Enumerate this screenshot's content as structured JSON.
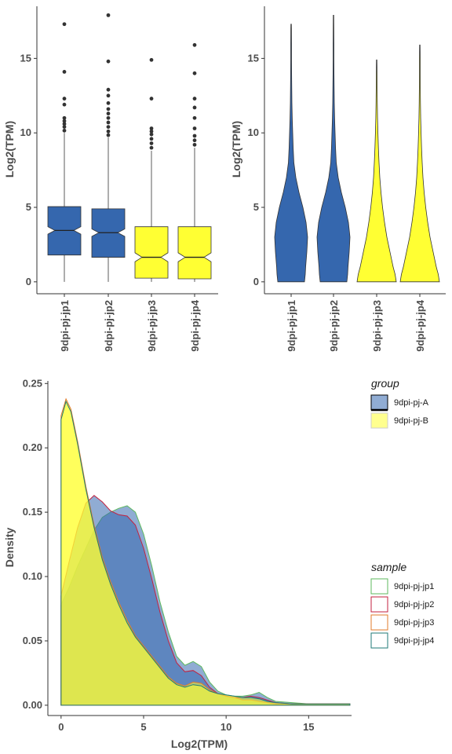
{
  "colors": {
    "groupA": "#3567AE",
    "groupB": "#FFFF33",
    "jp1": "#5EB95E",
    "jp2": "#C3213F",
    "jp3": "#E07B2B",
    "jp4": "#1F7A77"
  },
  "chart_data": [
    {
      "type": "boxplot",
      "xlabel": "",
      "ylabel": "Log2(TPM)",
      "ylim": [
        -0.8,
        18.5
      ],
      "yticks": [
        0,
        5,
        10,
        15
      ],
      "categories": [
        "9dpi-pj-jp1",
        "9dpi-pj-jp2",
        "9dpi-pj-jp3",
        "9dpi-pj-jp4"
      ],
      "notched": true,
      "boxes": [
        {
          "group": "9dpi-pj-A",
          "min": 0,
          "q1": 1.8,
          "median": 3.45,
          "q3": 5.05,
          "whisker_high": 10.0,
          "notch": [
            3.2,
            3.7
          ],
          "outliers": [
            10.15,
            10.4,
            10.6,
            10.8,
            11.0,
            11.9,
            12.3,
            14.1,
            17.3
          ]
        },
        {
          "group": "9dpi-pj-A",
          "min": 0,
          "q1": 1.65,
          "median": 3.3,
          "q3": 4.9,
          "whisker_high": 9.7,
          "notch": [
            3.05,
            3.55
          ],
          "outliers": [
            9.85,
            10.1,
            10.4,
            10.7,
            11.0,
            11.3,
            11.6,
            12.0,
            12.5,
            12.9,
            14.8,
            17.9
          ]
        },
        {
          "group": "9dpi-pj-B",
          "min": 0,
          "q1": 0.25,
          "median": 1.65,
          "q3": 3.7,
          "whisker_high": 8.8,
          "notch": [
            1.35,
            1.95
          ],
          "outliers": [
            9.0,
            9.3,
            9.6,
            9.9,
            10.1,
            10.3,
            12.3,
            14.9
          ]
        },
        {
          "group": "9dpi-pj-B",
          "min": 0,
          "q1": 0.2,
          "median": 1.65,
          "q3": 3.7,
          "whisker_high": 9.0,
          "notch": [
            1.35,
            1.95
          ],
          "outliers": [
            9.2,
            9.5,
            9.8,
            10.3,
            11.0,
            11.7,
            12.3,
            14.0,
            15.9
          ]
        }
      ]
    },
    {
      "type": "violin",
      "xlabel": "",
      "ylabel": "Log2(TPM)",
      "ylim": [
        -0.8,
        18.5
      ],
      "yticks": [
        0,
        5,
        10,
        15
      ],
      "categories": [
        "9dpi-pj-jp1",
        "9dpi-pj-jp2",
        "9dpi-pj-jp3",
        "9dpi-pj-jp4"
      ],
      "max_values": [
        17.3,
        17.9,
        14.9,
        15.9
      ],
      "groups": [
        "9dpi-pj-A",
        "9dpi-pj-A",
        "9dpi-pj-B",
        "9dpi-pj-B"
      ]
    },
    {
      "type": "area",
      "xlabel": "Log2(TPM)",
      "ylabel": "Density",
      "xlim": [
        -0.8,
        17.6
      ],
      "ylim": [
        -0.008,
        0.252
      ],
      "xticks": [
        0,
        5,
        10,
        15
      ],
      "yticks": [
        0.0,
        0.05,
        0.1,
        0.15,
        0.2,
        0.25
      ],
      "ytick_labels": [
        "0.00",
        "0.05",
        "0.10",
        "0.15",
        "0.20",
        "0.25"
      ],
      "series": [
        {
          "name": "9dpi-pj-jp1",
          "group": "9dpi-pj-A",
          "x": [
            0,
            0.5,
            1,
            1.5,
            2,
            2.5,
            3,
            3.5,
            4,
            4.5,
            5,
            5.5,
            6,
            6.5,
            7,
            7.5,
            8,
            8.5,
            9,
            9.5,
            10,
            10.5,
            11,
            11.5,
            12,
            12.5,
            13,
            14,
            15,
            16,
            17.5
          ],
          "y": [
            0.078,
            0.092,
            0.108,
            0.122,
            0.136,
            0.146,
            0.15,
            0.153,
            0.155,
            0.15,
            0.133,
            0.108,
            0.08,
            0.057,
            0.038,
            0.031,
            0.034,
            0.03,
            0.018,
            0.011,
            0.008,
            0.007,
            0.007,
            0.008,
            0.01,
            0.006,
            0.003,
            0.002,
            0.001,
            0.001,
            0.001
          ]
        },
        {
          "name": "9dpi-pj-jp2",
          "group": "9dpi-pj-A",
          "x": [
            0,
            0.5,
            1,
            1.5,
            2,
            2.5,
            3,
            3.5,
            4,
            4.5,
            5,
            5.5,
            6,
            6.5,
            7,
            7.5,
            8,
            8.5,
            9,
            9.5,
            10,
            10.5,
            11,
            11.5,
            12,
            12.5,
            13,
            14,
            15,
            16,
            17.5
          ],
          "y": [
            0.085,
            0.112,
            0.138,
            0.157,
            0.163,
            0.158,
            0.151,
            0.148,
            0.147,
            0.14,
            0.122,
            0.098,
            0.072,
            0.05,
            0.033,
            0.026,
            0.027,
            0.023,
            0.014,
            0.009,
            0.007,
            0.006,
            0.006,
            0.007,
            0.006,
            0.004,
            0.002,
            0.001,
            0.001,
            0.001,
            0.001
          ]
        },
        {
          "name": "9dpi-pj-jp3",
          "group": "9dpi-pj-B",
          "x": [
            0,
            0.3,
            0.6,
            1,
            1.5,
            2,
            2.5,
            3,
            3.5,
            4,
            4.5,
            5,
            5.5,
            6,
            6.5,
            7,
            7.5,
            8,
            8.5,
            9,
            9.5,
            10,
            10.5,
            11,
            11.5,
            12,
            12.5,
            13,
            14,
            15,
            16,
            17.5
          ],
          "y": [
            0.225,
            0.238,
            0.23,
            0.205,
            0.17,
            0.14,
            0.115,
            0.096,
            0.08,
            0.066,
            0.054,
            0.046,
            0.038,
            0.03,
            0.022,
            0.017,
            0.015,
            0.018,
            0.017,
            0.012,
            0.009,
            0.007,
            0.006,
            0.004,
            0.004,
            0.003,
            0.002,
            0.001,
            0.001,
            0.001,
            0.001,
            0.001
          ]
        },
        {
          "name": "9dpi-pj-jp4",
          "group": "9dpi-pj-B",
          "x": [
            0,
            0.3,
            0.6,
            1,
            1.5,
            2,
            2.5,
            3,
            3.5,
            4,
            4.5,
            5,
            5.5,
            6,
            6.5,
            7,
            7.5,
            8,
            8.5,
            9,
            9.5,
            10,
            10.5,
            11,
            11.5,
            12,
            12.5,
            13,
            14,
            15,
            16,
            17.5
          ],
          "y": [
            0.222,
            0.236,
            0.228,
            0.203,
            0.168,
            0.138,
            0.113,
            0.094,
            0.078,
            0.064,
            0.053,
            0.045,
            0.037,
            0.029,
            0.021,
            0.016,
            0.014,
            0.016,
            0.015,
            0.011,
            0.009,
            0.008,
            0.007,
            0.006,
            0.006,
            0.005,
            0.003,
            0.002,
            0.001,
            0.001,
            0.001,
            0.001
          ]
        }
      ]
    }
  ],
  "legend_group": {
    "title": "group",
    "items": [
      "9dpi-pj-A",
      "9dpi-pj-B"
    ]
  },
  "legend_sample": {
    "title": "sample",
    "items": [
      "9dpi-pj-jp1",
      "9dpi-pj-jp2",
      "9dpi-pj-jp3",
      "9dpi-pj-jp4"
    ]
  }
}
